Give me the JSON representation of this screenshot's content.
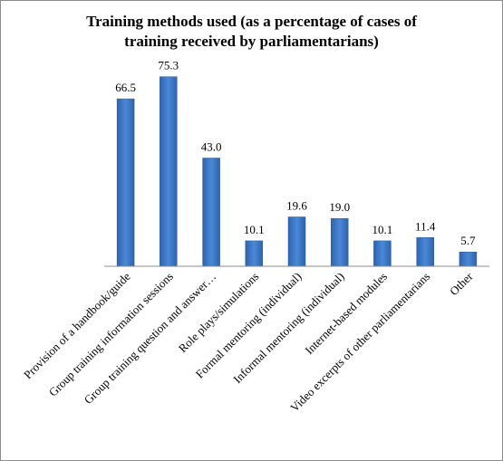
{
  "chart_data": {
    "type": "bar",
    "title_lines": [
      "Training methods used (as a percentage of cases of",
      "training received by parliamentarians)"
    ],
    "categories": [
      "Provision of a handbook/guide",
      "Group training information sessions",
      "Group training question and answer…",
      "Role plays/simulations",
      "Formal mentoring (individual)",
      "Informal mentoring (individual)",
      "Internet-based modules",
      "Video excerpts of other parliamentarians",
      "Other"
    ],
    "values": [
      66.5,
      75.3,
      43.0,
      10.1,
      19.6,
      19.0,
      10.1,
      11.4,
      5.7
    ],
    "value_labels": [
      "66.5",
      "75.3",
      "43.0",
      "10.1",
      "19.6",
      "19.0",
      "10.1",
      "11.4",
      "5.7"
    ],
    "xlabel": "",
    "ylabel": "",
    "ylim": [
      0,
      80
    ],
    "grid": false,
    "legend": "none",
    "bar_color": "#3d78c6",
    "bar_edge_color": "#2a5a9e"
  }
}
